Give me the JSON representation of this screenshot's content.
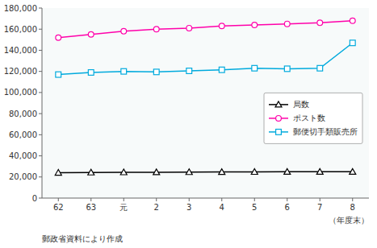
{
  "chart_data": {
    "type": "line",
    "categories": [
      "62",
      "63",
      "元",
      "2",
      "3",
      "4",
      "5",
      "6",
      "7",
      "8"
    ],
    "series": [
      {
        "name": "局数",
        "color": "#000000",
        "marker": "triangle",
        "line_style": "solid",
        "values": [
          24000,
          24200,
          24400,
          24500,
          24600,
          24700,
          24800,
          24900,
          24900,
          24900
        ]
      },
      {
        "name": "ポスト数",
        "color": "#ff00aa",
        "marker": "circle",
        "line_style": "solid",
        "values": [
          152000,
          155000,
          158000,
          160000,
          161000,
          163000,
          164000,
          165000,
          166000,
          168000
        ]
      },
      {
        "name": "郵便切手類販売所",
        "color": "#00aadd",
        "marker": "square",
        "line_style": "solid",
        "values": [
          117000,
          119000,
          120000,
          119500,
          120500,
          121500,
          123000,
          122500,
          123000,
          147000
        ]
      }
    ],
    "xlabel": "（年度末）",
    "annotations": [
      "郵政省資料により作成"
    ],
    "ylim": [
      0,
      180000
    ],
    "yticks": [
      0,
      {
        "value": 20000,
        "label": "20,000"
      },
      {
        "value": 40000,
        "label": "40,000"
      },
      {
        "value": 60000,
        "label": "60,000"
      },
      {
        "value": 80000,
        "label": "80,000"
      },
      {
        "value": 100000,
        "label": "100,000"
      },
      {
        "value": 120000,
        "label": "120,000"
      },
      {
        "value": 140000,
        "label": "140,000"
      },
      {
        "value": 160000,
        "label": "160,000"
      },
      {
        "value": 180000,
        "label": "180,000"
      }
    ],
    "grid": false,
    "legend": "right"
  }
}
